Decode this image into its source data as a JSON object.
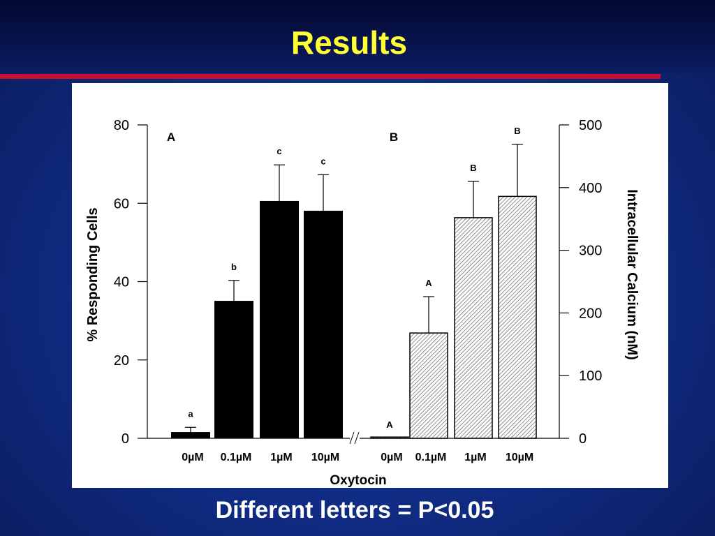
{
  "slide": {
    "title": "Results",
    "footer": "Different letters = P<0.05"
  },
  "colors": {
    "title": "#ffff33",
    "rule": "#c8102e",
    "background": "#0f2a80",
    "bar_solid": "#000000",
    "bar_hatched": "hatched"
  },
  "chart_data": {
    "type": "bar",
    "xlabel": "Oxytocin",
    "panels": [
      {
        "label": "A",
        "ylabel": "% Responding Cells",
        "axis_side": "left",
        "ylim": [
          0,
          80
        ],
        "yticks": [
          0,
          20,
          40,
          60,
          80
        ],
        "fill": "solid",
        "categories": [
          "0µM",
          "0.1µM",
          "1µM",
          "10µM"
        ],
        "values": [
          1.5,
          35,
          60.5,
          58
        ],
        "errors": [
          1.3,
          5.3,
          9.3,
          9.3
        ],
        "letters": [
          "a",
          "b",
          "c",
          "c"
        ]
      },
      {
        "label": "B",
        "ylabel": "Intracellular Calcium (nM)",
        "axis_side": "right",
        "ylim": [
          0,
          500
        ],
        "yticks": [
          0,
          100,
          200,
          300,
          400,
          500
        ],
        "fill": "hatched",
        "categories": [
          "0µM",
          "0.1µM",
          "1µM",
          "10µM"
        ],
        "values": [
          0,
          168,
          352,
          386
        ],
        "errors": [
          0,
          58,
          58,
          83
        ],
        "letters": [
          "A",
          "A",
          "B",
          "B"
        ]
      }
    ]
  }
}
